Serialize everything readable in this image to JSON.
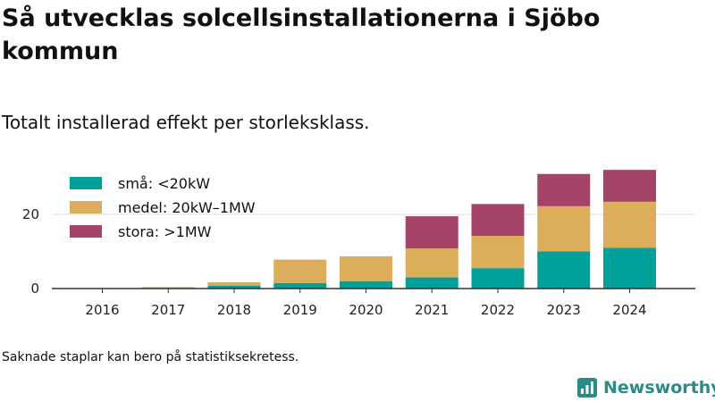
{
  "title": "Så utvecklas solcellsinstallationerna i Sjöbo kommun",
  "subtitle": "Totalt installerad effekt per storleksklass.",
  "footnote": "Saknade staplar kan bero på statistiksekretess.",
  "brand": "Newsworthy",
  "chart_data": {
    "type": "bar",
    "stacked": true,
    "categories": [
      "2016",
      "2017",
      "2018",
      "2019",
      "2020",
      "2021",
      "2022",
      "2023",
      "2024"
    ],
    "series": [
      {
        "name": "små: <20kW",
        "color": "#00a19a",
        "values": [
          0,
          0.1,
          0.8,
          1.5,
          2.0,
          3.0,
          5.5,
          10.0,
          11.0
        ]
      },
      {
        "name": "medel: 20kW–1MW",
        "color": "#dcad5a",
        "values": [
          0,
          0.3,
          0.9,
          6.3,
          6.7,
          7.8,
          8.7,
          12.2,
          12.4
        ]
      },
      {
        "name": "stora: >1MW",
        "color": "#a54468",
        "values": [
          0,
          0,
          0,
          0,
          0,
          8.7,
          8.6,
          8.7,
          8.6
        ]
      }
    ],
    "yticks": [
      0,
      20
    ],
    "ylim": [
      0,
      33
    ],
    "grid": true,
    "legend": "top-left"
  }
}
